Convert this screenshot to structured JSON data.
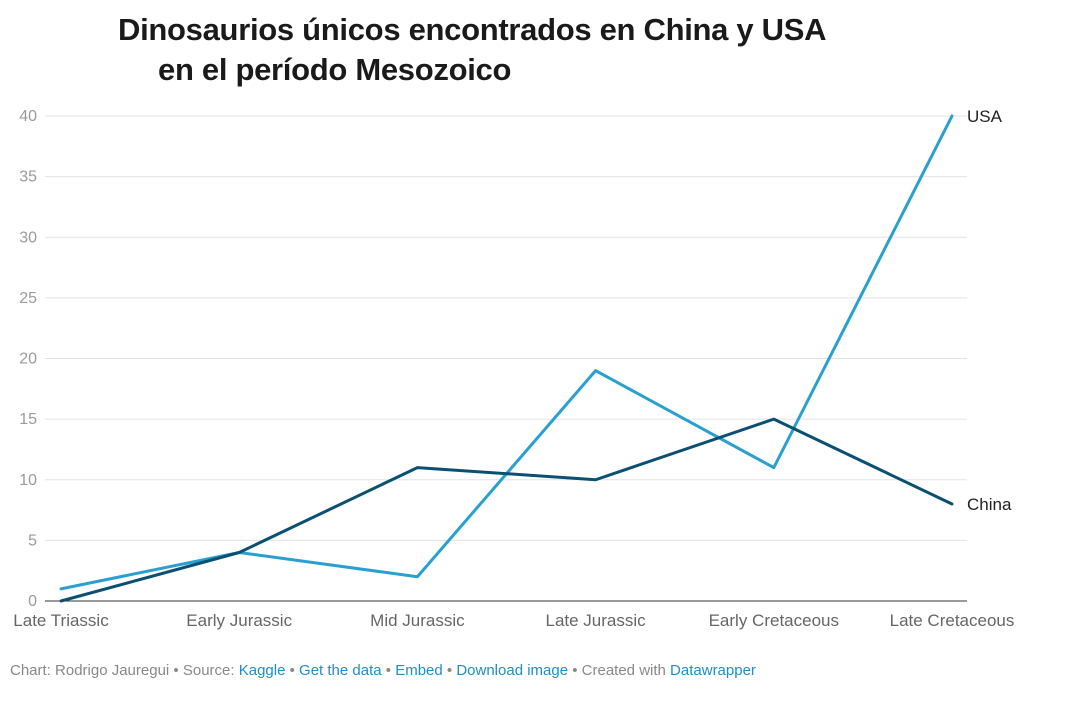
{
  "title": {
    "line1": "Dinosaurios únicos encontrados en China y USA",
    "line2": "en el período Mesozoico"
  },
  "chart_data": {
    "type": "line",
    "categories": [
      "Late Triassic",
      "Early Jurassic",
      "Mid Jurassic",
      "Late Jurassic",
      "Early Cretaceous",
      "Late Cretaceous"
    ],
    "series": [
      {
        "name": "USA",
        "values": [
          1,
          4,
          2,
          19,
          11,
          40
        ],
        "color": "#29a0cf"
      },
      {
        "name": "China",
        "values": [
          0,
          4,
          11,
          10,
          15,
          8
        ],
        "color": "#0b4f73"
      }
    ],
    "yticks": [
      "0",
      "5",
      "10",
      "15",
      "20",
      "25",
      "30",
      "35",
      "40"
    ],
    "ylim": [
      0,
      40
    ],
    "grid": true,
    "legend": "direct labels at line ends"
  },
  "footer": {
    "chart_by": "Chart: Rodrigo Jauregui",
    "source_label": "Source:",
    "source_link": "Kaggle",
    "get_data": "Get the data",
    "embed": "Embed",
    "download": "Download image",
    "created_with": "Created with",
    "tool": "Datawrapper"
  }
}
